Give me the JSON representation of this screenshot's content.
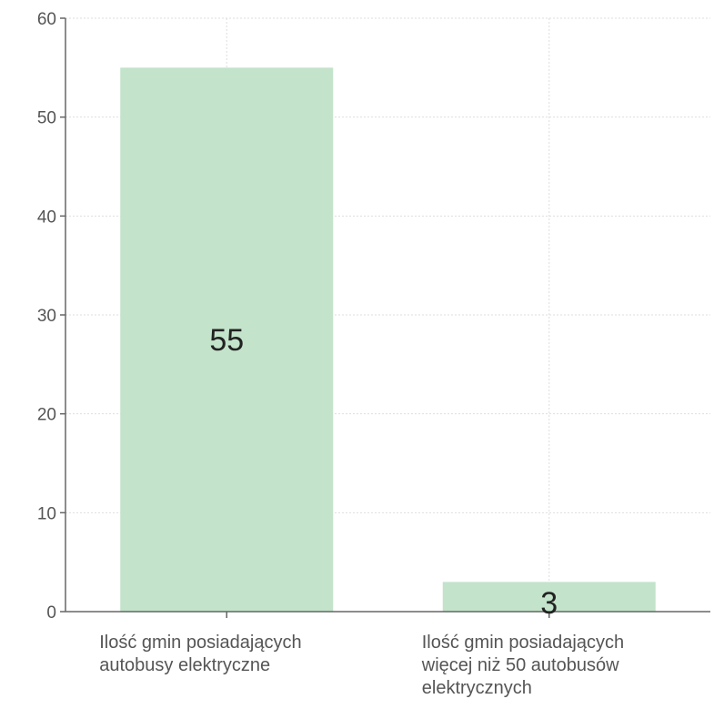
{
  "chart_data": {
    "type": "bar",
    "categories": [
      [
        "Ilość gmin posiadających",
        "autobusy elektryczne"
      ],
      [
        "Ilość gmin posiadających",
        "więcej niż 50 autobusów",
        "elektrycznych"
      ]
    ],
    "values": [
      55,
      3
    ],
    "data_labels": [
      "55",
      "3"
    ],
    "yticks": [
      "0",
      "10",
      "20",
      "30",
      "40",
      "50",
      "60"
    ],
    "ylim": [
      0,
      60
    ],
    "grid": true,
    "bar_color": "#c3e3ca",
    "axis_color": "#666666",
    "grid_color": "#dedede"
  }
}
